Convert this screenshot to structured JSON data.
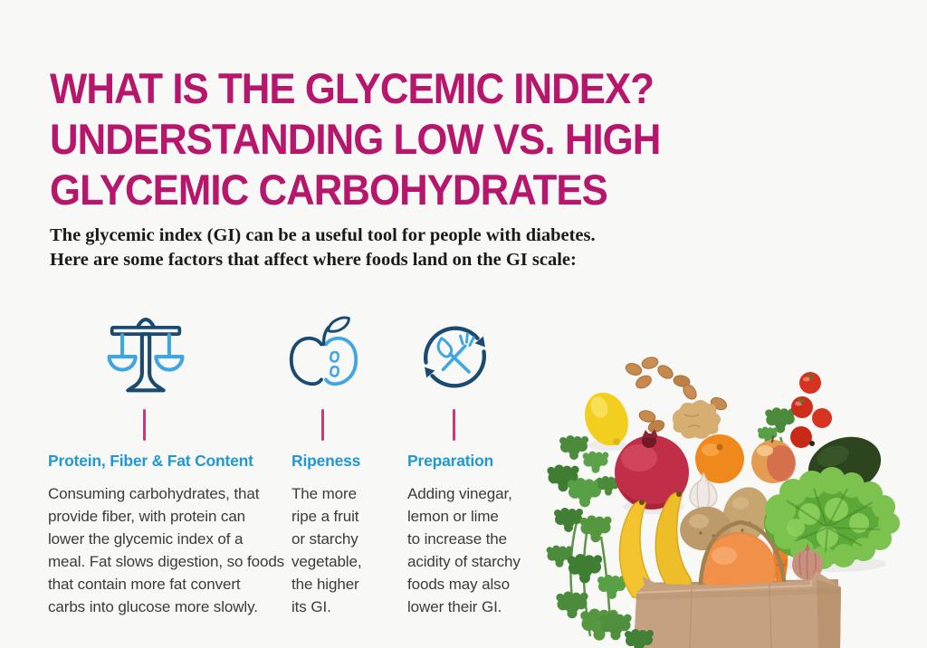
{
  "infographic": {
    "title_lines": [
      "WHAT IS THE GLYCEMIC INDEX?",
      "UNDERSTANDING LOW VS. HIGH",
      "GLYCEMIC CARBOHYDRATES"
    ],
    "intro_lines": [
      "The glycemic index (GI) can be a useful tool for people with diabetes.",
      "Here are some factors that affect where foods land on the GI scale:"
    ]
  },
  "factors": [
    {
      "icon": "balance-scale-icon",
      "heading": "Protein, Fiber & Fat Content",
      "body_lines": [
        "Consuming carbohydrates, that",
        "provide fiber, with protein can",
        "lower the glycemic index of a",
        "meal. Fat slows digestion, so foods",
        "that contain more fat convert",
        "carbs into glucose more slowly."
      ]
    },
    {
      "icon": "half-apple-icon",
      "heading": "Ripeness",
      "body_lines": [
        "The more",
        "ripe a fruit",
        "or starchy",
        "vegetable,",
        "the higher",
        "its GI."
      ]
    },
    {
      "icon": "preparation-cycle-icon",
      "heading": "Preparation",
      "body_lines": [
        "Adding vinegar,",
        "lemon or lime",
        "to increase the",
        "acidity of starchy",
        "foods may also",
        "lower their GI."
      ]
    }
  ],
  "photo": {
    "description": "Fresh groceries spilling from a brown paper bag",
    "items": [
      "lemon",
      "almonds",
      "ginger",
      "cherry-tomatoes",
      "parsley",
      "pomegranate",
      "mandarin-orange",
      "apple",
      "avocado",
      "garlic",
      "potatoes",
      "bananas",
      "lettuce",
      "carrot",
      "onion",
      "grapefruit",
      "paper-bag"
    ]
  },
  "colors": {
    "title_magenta": "#B6176C",
    "heading_blue": "#2098D4",
    "icon_navy": "#1A4A70",
    "icon_light_blue": "#3FA6E3",
    "tick_pink": "#CE3877",
    "body_text": "#3B3B3A",
    "background": "#F8F8F6"
  }
}
